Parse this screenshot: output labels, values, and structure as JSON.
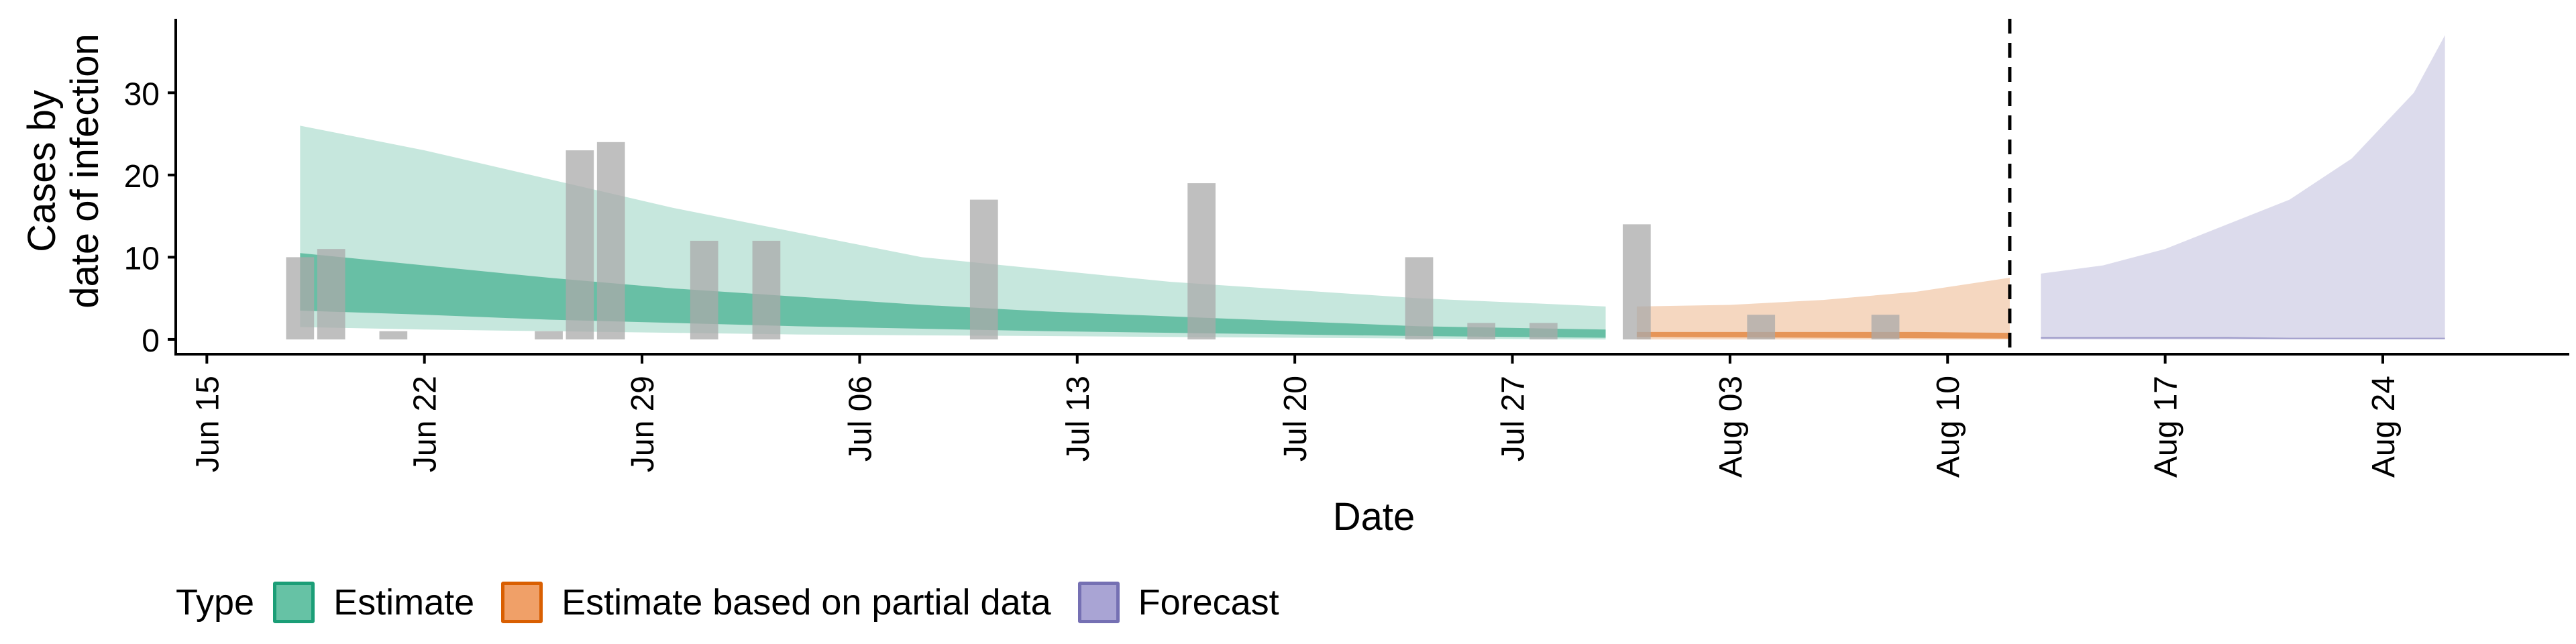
{
  "chart_data": {
    "type": "area",
    "xlabel": "Date",
    "ylabel": [
      "Cases by",
      "date of infection"
    ],
    "x_ticks": [
      "Jun 15",
      "Jun 22",
      "Jun 29",
      "Jul 06",
      "Jul 13",
      "Jul 20",
      "Jul 27",
      "Aug 03",
      "Aug 10",
      "Aug 17",
      "Aug 24"
    ],
    "y_ticks": [
      0,
      10,
      20,
      30
    ],
    "xlim": [
      "2020-06-14",
      "2020-08-30"
    ],
    "ylim": [
      -1.8,
      39
    ],
    "forecast_start_line": "2020-08-12",
    "legend": {
      "title": "Type",
      "placement": "bottom-left",
      "items": [
        {
          "label": "Estimate",
          "fill": "#66C2A5",
          "border": "#1B9E77"
        },
        {
          "label": "Estimate based on partial data",
          "fill": "#F0A068",
          "border": "#D95F02"
        },
        {
          "label": "Forecast",
          "fill": "#A9A4D4",
          "border": "#7570B3"
        }
      ]
    },
    "colors": {
      "Estimate": "#1B9E77",
      "Estimate based on partial data": "#D95F02",
      "Forecast": "#7570B3",
      "bars": "#A9A9A9"
    },
    "reported_cases": [
      {
        "date": "2020-06-18",
        "value": 10
      },
      {
        "date": "2020-06-19",
        "value": 11
      },
      {
        "date": "2020-06-21",
        "value": 1
      },
      {
        "date": "2020-06-26",
        "value": 1
      },
      {
        "date": "2020-06-27",
        "value": 23
      },
      {
        "date": "2020-06-28",
        "value": 24
      },
      {
        "date": "2020-07-01",
        "value": 12
      },
      {
        "date": "2020-07-03",
        "value": 12
      },
      {
        "date": "2020-07-10",
        "value": 17
      },
      {
        "date": "2020-07-17",
        "value": 19
      },
      {
        "date": "2020-07-24",
        "value": 10
      },
      {
        "date": "2020-07-26",
        "value": 2
      },
      {
        "date": "2020-07-28",
        "value": 2
      },
      {
        "date": "2020-07-31",
        "value": 14
      },
      {
        "date": "2020-08-04",
        "value": 3
      },
      {
        "date": "2020-08-08",
        "value": 3
      }
    ],
    "series": [
      {
        "name": "Estimate",
        "x": [
          "2020-06-18",
          "2020-06-22",
          "2020-06-26",
          "2020-06-30",
          "2020-07-04",
          "2020-07-08",
          "2020-07-12",
          "2020-07-16",
          "2020-07-20",
          "2020-07-24",
          "2020-07-30"
        ],
        "upper_90": [
          26,
          23,
          19.5,
          16,
          13,
          10,
          8.5,
          7,
          6,
          5,
          4
        ],
        "upper_50": [
          10.5,
          9,
          7.5,
          6.2,
          5.2,
          4.2,
          3.4,
          2.8,
          2.2,
          1.6,
          1.2
        ],
        "lower_50": [
          3.5,
          3,
          2.4,
          2,
          1.6,
          1.3,
          1,
          0.8,
          0.6,
          0.4,
          0.2
        ],
        "lower_90": [
          1.5,
          1.2,
          1,
          0.8,
          0.6,
          0.5,
          0.4,
          0.3,
          0.2,
          0.1,
          0
        ]
      },
      {
        "name": "Estimate based on partial data",
        "x": [
          "2020-07-31",
          "2020-08-03",
          "2020-08-06",
          "2020-08-09",
          "2020-08-12"
        ],
        "upper_90": [
          4,
          4.2,
          4.8,
          5.8,
          7.5
        ],
        "upper_50": [
          0.9,
          0.9,
          0.9,
          0.9,
          0.8
        ],
        "lower_50": [
          0.3,
          0.25,
          0.2,
          0.15,
          0.1
        ],
        "lower_90": [
          0,
          0,
          0,
          0,
          0
        ]
      },
      {
        "name": "Forecast",
        "x": [
          "2020-08-13",
          "2020-08-15",
          "2020-08-17",
          "2020-08-19",
          "2020-08-21",
          "2020-08-23",
          "2020-08-25",
          "2020-08-26"
        ],
        "upper_90": [
          8,
          9,
          11,
          14,
          17,
          22,
          30,
          37
        ],
        "upper_50": [
          0.3,
          0.3,
          0.3,
          0.3,
          0.2,
          0.2,
          0.2,
          0.2
        ],
        "lower_50": [
          0.1,
          0.1,
          0.1,
          0.1,
          0.05,
          0.05,
          0.05,
          0.05
        ],
        "lower_90": [
          0,
          0,
          0,
          0,
          0,
          0,
          0,
          0
        ]
      }
    ]
  }
}
